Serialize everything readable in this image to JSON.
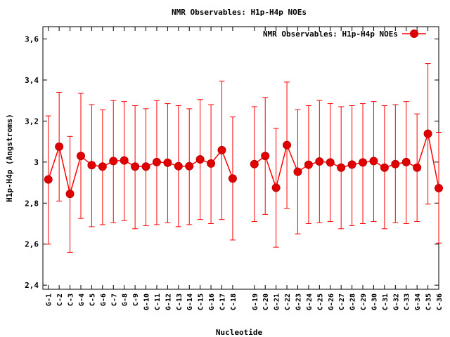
{
  "chart_data": {
    "type": "line",
    "title": "NMR Observables: H1p-H4p NOEs",
    "xlabel": "Nucleotide",
    "ylabel": "H1p-H4p (Angstroms)",
    "ylim": [
      2.38,
      3.66
    ],
    "yticks": [
      2.4,
      2.6,
      2.8,
      3.0,
      3.2,
      3.4,
      3.6
    ],
    "ytick_labels": [
      "2,4",
      "2,6",
      "2,8",
      "3",
      "3,2",
      "3,4",
      "3,6"
    ],
    "xlim": [
      0.5,
      37
    ],
    "legend_position": "top-right",
    "color": "#ff0000",
    "marker_color": "#e00000",
    "series": [
      {
        "name": "NMR Observables: H1p-H4p NOEs",
        "points": [
          {
            "x": 1,
            "label": "G-1",
            "y": 2.915,
            "err_low": 2.6,
            "err_high": 3.225
          },
          {
            "x": 2,
            "label": "C-2",
            "y": 3.075,
            "err_low": 2.81,
            "err_high": 3.34
          },
          {
            "x": 3,
            "label": "C-3",
            "y": 2.845,
            "err_low": 2.56,
            "err_high": 3.125
          },
          {
            "x": 4,
            "label": "G-4",
            "y": 3.03,
            "err_low": 2.725,
            "err_high": 3.335
          },
          {
            "x": 5,
            "label": "C-5",
            "y": 2.985,
            "err_low": 2.685,
            "err_high": 3.28
          },
          {
            "x": 6,
            "label": "G-6",
            "y": 2.978,
            "err_low": 2.695,
            "err_high": 3.255
          },
          {
            "x": 7,
            "label": "C-7",
            "y": 3.005,
            "err_low": 2.705,
            "err_high": 3.3
          },
          {
            "x": 8,
            "label": "G-8",
            "y": 3.008,
            "err_low": 2.715,
            "err_high": 3.295
          },
          {
            "x": 9,
            "label": "C-9",
            "y": 2.978,
            "err_low": 2.675,
            "err_high": 3.275
          },
          {
            "x": 10,
            "label": "G-10",
            "y": 2.978,
            "err_low": 2.69,
            "err_high": 3.26
          },
          {
            "x": 11,
            "label": "C-11",
            "y": 3.0,
            "err_low": 2.695,
            "err_high": 3.3
          },
          {
            "x": 12,
            "label": "G-12",
            "y": 2.997,
            "err_low": 2.705,
            "err_high": 3.285
          },
          {
            "x": 13,
            "label": "C-13",
            "y": 2.98,
            "err_low": 2.685,
            "err_high": 3.275
          },
          {
            "x": 14,
            "label": "G-14",
            "y": 2.98,
            "err_low": 2.695,
            "err_high": 3.26
          },
          {
            "x": 15,
            "label": "C-15",
            "y": 3.013,
            "err_low": 2.72,
            "err_high": 3.305
          },
          {
            "x": 16,
            "label": "G-16",
            "y": 2.993,
            "err_low": 2.7,
            "err_high": 3.28
          },
          {
            "x": 17,
            "label": "C-17",
            "y": 3.058,
            "err_low": 2.72,
            "err_high": 3.395
          },
          {
            "x": 18,
            "label": "C-18",
            "y": 2.92,
            "err_low": 2.62,
            "err_high": 3.22
          },
          {
            "x": 20,
            "label": "G-19",
            "y": 2.99,
            "err_low": 2.71,
            "err_high": 3.27
          },
          {
            "x": 21,
            "label": "C-20",
            "y": 3.03,
            "err_low": 2.745,
            "err_high": 3.315
          },
          {
            "x": 22,
            "label": "G-21",
            "y": 2.875,
            "err_low": 2.585,
            "err_high": 3.165
          },
          {
            "x": 23,
            "label": "C-22",
            "y": 3.083,
            "err_low": 2.775,
            "err_high": 3.39
          },
          {
            "x": 24,
            "label": "G-23",
            "y": 2.953,
            "err_low": 2.65,
            "err_high": 3.255
          },
          {
            "x": 25,
            "label": "G-24",
            "y": 2.987,
            "err_low": 2.7,
            "err_high": 3.275
          },
          {
            "x": 26,
            "label": "C-25",
            "y": 3.003,
            "err_low": 2.705,
            "err_high": 3.3
          },
          {
            "x": 27,
            "label": "G-26",
            "y": 2.998,
            "err_low": 2.71,
            "err_high": 3.285
          },
          {
            "x": 28,
            "label": "C-27",
            "y": 2.973,
            "err_low": 2.675,
            "err_high": 3.27
          },
          {
            "x": 29,
            "label": "G-28",
            "y": 2.988,
            "err_low": 2.69,
            "err_high": 3.275
          },
          {
            "x": 30,
            "label": "C-29",
            "y": 2.998,
            "err_low": 2.7,
            "err_high": 3.285
          },
          {
            "x": 31,
            "label": "G-30",
            "y": 3.005,
            "err_low": 2.71,
            "err_high": 3.295
          },
          {
            "x": 32,
            "label": "C-31",
            "y": 2.973,
            "err_low": 2.675,
            "err_high": 3.275
          },
          {
            "x": 33,
            "label": "G-32",
            "y": 2.99,
            "err_low": 2.705,
            "err_high": 3.28
          },
          {
            "x": 34,
            "label": "C-33",
            "y": 3.0,
            "err_low": 2.7,
            "err_high": 3.295
          },
          {
            "x": 35,
            "label": "G-34",
            "y": 2.973,
            "err_low": 2.71,
            "err_high": 3.235
          },
          {
            "x": 36,
            "label": "C-35",
            "y": 3.138,
            "err_low": 2.795,
            "err_high": 3.48
          },
          {
            "x": 37,
            "label": "C-36",
            "y": 2.873,
            "err_low": 2.605,
            "err_high": 3.145
          }
        ]
      }
    ]
  }
}
